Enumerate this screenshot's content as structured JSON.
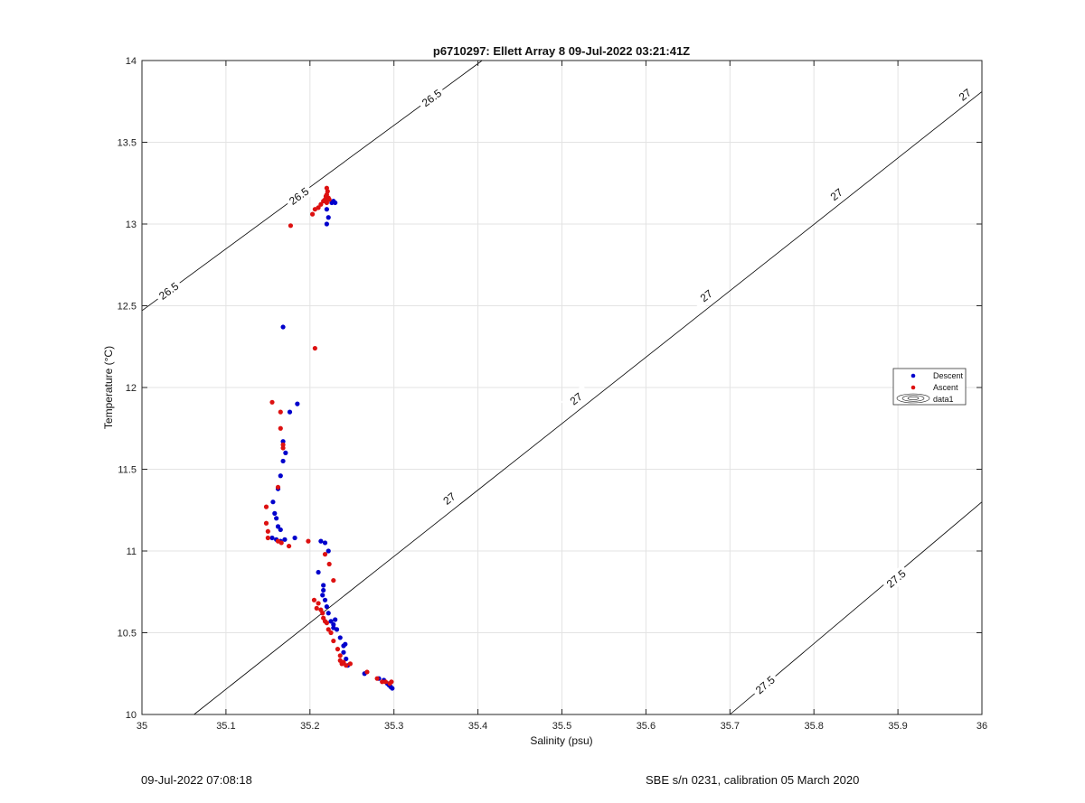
{
  "chart_data": {
    "type": "scatter",
    "title": "p6710297: Ellett Array 8 09-Jul-2022 03:21:41Z",
    "xlabel": "Salinity (psu)",
    "ylabel": "Temperature (°C)",
    "xlim": [
      35,
      36
    ],
    "ylim": [
      10,
      14
    ],
    "xticks": [
      "35",
      "35.1",
      "35.2",
      "35.3",
      "35.4",
      "35.5",
      "35.6",
      "35.7",
      "35.8",
      "35.9",
      "36"
    ],
    "yticks": [
      "10",
      "10.5",
      "11",
      "11.5",
      "12",
      "12.5",
      "13",
      "13.5",
      "14"
    ],
    "grid": true,
    "legend_position": "right",
    "legend": [
      "Descent",
      "Ascent",
      "data1"
    ],
    "colors": {
      "Descent": "#0000cc",
      "Ascent": "#dd1111",
      "contour": "#000000",
      "grid": "#e3e3e3"
    },
    "series": [
      {
        "name": "Descent",
        "points": [
          [
            35.168,
            12.37
          ],
          [
            35.185,
            11.9
          ],
          [
            35.176,
            11.85
          ],
          [
            35.168,
            11.67
          ],
          [
            35.171,
            11.6
          ],
          [
            35.168,
            11.55
          ],
          [
            35.165,
            11.46
          ],
          [
            35.162,
            11.38
          ],
          [
            35.156,
            11.3
          ],
          [
            35.158,
            11.23
          ],
          [
            35.16,
            11.2
          ],
          [
            35.162,
            11.15
          ],
          [
            35.165,
            11.13
          ],
          [
            35.155,
            11.08
          ],
          [
            35.16,
            11.07
          ],
          [
            35.165,
            11.06
          ],
          [
            35.17,
            11.07
          ],
          [
            35.182,
            11.08
          ],
          [
            35.213,
            11.06
          ],
          [
            35.218,
            11.05
          ],
          [
            35.222,
            11.0
          ],
          [
            35.21,
            10.87
          ],
          [
            35.216,
            10.79
          ],
          [
            35.216,
            10.76
          ],
          [
            35.215,
            10.73
          ],
          [
            35.218,
            10.7
          ],
          [
            35.22,
            10.66
          ],
          [
            35.222,
            10.62
          ],
          [
            35.225,
            10.57
          ],
          [
            35.228,
            10.55
          ],
          [
            35.23,
            10.58
          ],
          [
            35.228,
            10.53
          ],
          [
            35.232,
            10.52
          ],
          [
            35.236,
            10.47
          ],
          [
            35.24,
            10.42
          ],
          [
            35.242,
            10.43
          ],
          [
            35.24,
            10.38
          ],
          [
            35.243,
            10.34
          ],
          [
            35.245,
            10.3
          ],
          [
            35.265,
            10.25
          ],
          [
            35.282,
            10.22
          ],
          [
            35.288,
            10.21
          ],
          [
            35.292,
            10.19
          ],
          [
            35.294,
            10.18
          ],
          [
            35.296,
            10.17
          ],
          [
            35.298,
            10.16
          ],
          [
            35.22,
            13.09
          ],
          [
            35.226,
            13.13
          ],
          [
            35.228,
            13.14
          ],
          [
            35.23,
            13.13
          ],
          [
            35.222,
            13.04
          ],
          [
            35.22,
            13.0
          ]
        ]
      },
      {
        "name": "Ascent",
        "points": [
          [
            35.22,
            13.22
          ],
          [
            35.221,
            13.2
          ],
          [
            35.22,
            13.18
          ],
          [
            35.219,
            13.17
          ],
          [
            35.222,
            13.16
          ],
          [
            35.218,
            13.15
          ],
          [
            35.223,
            13.15
          ],
          [
            35.216,
            13.14
          ],
          [
            35.22,
            13.13
          ],
          [
            35.213,
            13.12
          ],
          [
            35.21,
            13.1
          ],
          [
            35.206,
            13.09
          ],
          [
            35.203,
            13.06
          ],
          [
            35.177,
            12.99
          ],
          [
            35.206,
            12.24
          ],
          [
            35.155,
            11.91
          ],
          [
            35.165,
            11.85
          ],
          [
            35.165,
            11.75
          ],
          [
            35.168,
            11.65
          ],
          [
            35.168,
            11.63
          ],
          [
            35.162,
            11.39
          ],
          [
            35.148,
            11.27
          ],
          [
            35.148,
            11.17
          ],
          [
            35.15,
            11.12
          ],
          [
            35.15,
            11.08
          ],
          [
            35.162,
            11.06
          ],
          [
            35.166,
            11.05
          ],
          [
            35.175,
            11.03
          ],
          [
            35.198,
            11.06
          ],
          [
            35.218,
            10.98
          ],
          [
            35.223,
            10.92
          ],
          [
            35.228,
            10.82
          ],
          [
            35.205,
            10.7
          ],
          [
            35.21,
            10.68
          ],
          [
            35.208,
            10.65
          ],
          [
            35.213,
            10.64
          ],
          [
            35.215,
            10.62
          ],
          [
            35.216,
            10.59
          ],
          [
            35.218,
            10.57
          ],
          [
            35.22,
            10.56
          ],
          [
            35.222,
            10.52
          ],
          [
            35.225,
            10.5
          ],
          [
            35.228,
            10.45
          ],
          [
            35.233,
            10.4
          ],
          [
            35.236,
            10.36
          ],
          [
            35.236,
            10.33
          ],
          [
            35.238,
            10.31
          ],
          [
            35.24,
            10.32
          ],
          [
            35.243,
            10.3
          ],
          [
            35.248,
            10.31
          ],
          [
            35.268,
            10.26
          ],
          [
            35.28,
            10.22
          ],
          [
            35.286,
            10.2
          ],
          [
            35.29,
            10.2
          ],
          [
            35.295,
            10.19
          ],
          [
            35.297,
            10.2
          ]
        ]
      }
    ],
    "isopycnals": [
      {
        "value": 26.5,
        "points": [
          [
            35.0,
            12.47
          ],
          [
            35.405,
            14.0
          ]
        ],
        "labels": [
          "26.5",
          "26.5",
          "26.5"
        ],
        "label_at": [
          [
            35.032,
            12.59
          ],
          [
            35.187,
            13.17
          ],
          [
            35.345,
            13.77
          ]
        ]
      },
      {
        "value": 27,
        "points": [
          [
            35.062,
            10.0
          ],
          [
            36.0,
            13.81
          ]
        ],
        "labels": [
          "27",
          "27",
          "27",
          "27",
          "27"
        ],
        "label_at": [
          [
            35.366,
            11.32
          ],
          [
            35.517,
            11.93
          ],
          [
            35.672,
            12.56
          ],
          [
            35.827,
            13.18
          ],
          [
            35.98,
            13.79
          ]
        ]
      },
      {
        "value": 27.5,
        "points": [
          [
            35.7,
            10.0
          ],
          [
            36.0,
            11.3
          ]
        ],
        "labels": [
          "27.5",
          "27.5"
        ],
        "label_at": [
          [
            35.742,
            10.18
          ],
          [
            35.898,
            10.83
          ]
        ]
      }
    ]
  },
  "footer": {
    "left": "09-Jul-2022 07:08:18",
    "right": "SBE s/n 0231, calibration 05 March 2020"
  }
}
